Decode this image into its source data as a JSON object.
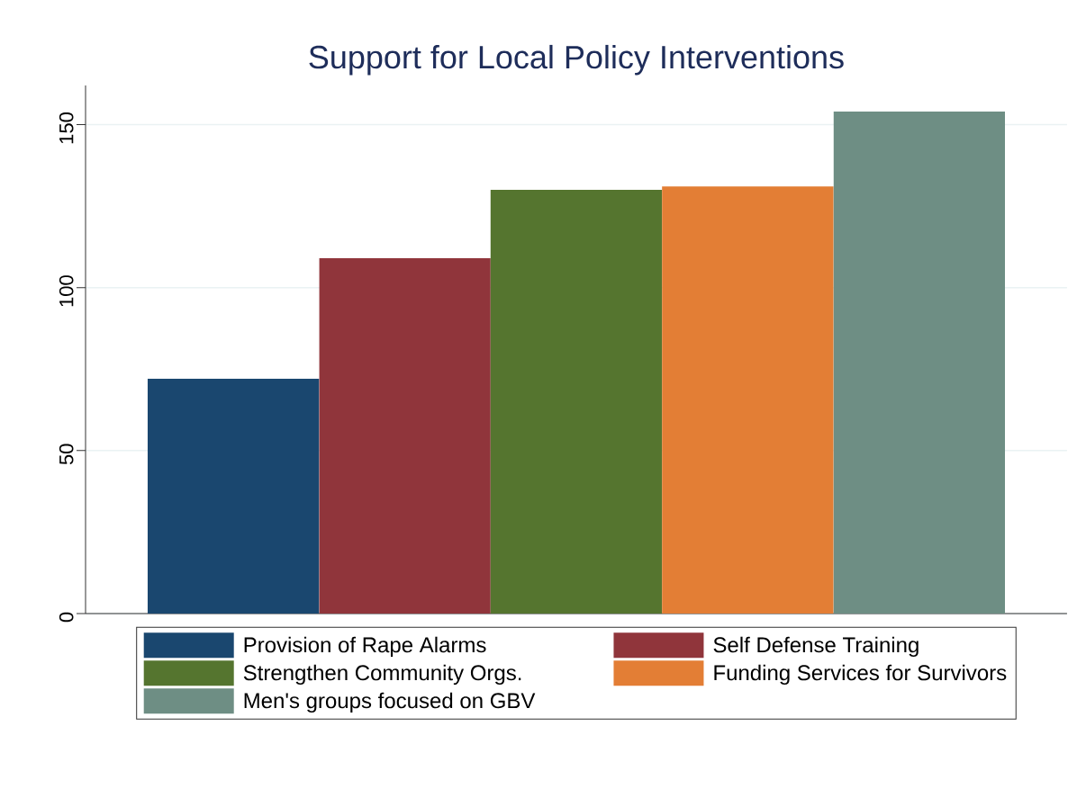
{
  "chart_data": {
    "type": "bar",
    "title": "Support for Local Policy Interventions",
    "categories": [
      null
    ],
    "series": [
      {
        "name": "Provision of Rape Alarms",
        "color": "#1a476f",
        "values": [
          72
        ]
      },
      {
        "name": "Self Defense Training",
        "color": "#90353b",
        "values": [
          109
        ]
      },
      {
        "name": "Strengthen Community Orgs.",
        "color": "#55752f",
        "values": [
          130
        ]
      },
      {
        "name": "Funding Services for Survivors",
        "color": "#e37e35",
        "values": [
          131
        ]
      },
      {
        "name": "Men's groups focused on GBV",
        "color": "#6e8e84",
        "values": [
          154
        ]
      }
    ],
    "ylim": [
      0,
      162
    ],
    "yticks": [
      0,
      50,
      100,
      150
    ],
    "grid": "y",
    "legend": "bottom"
  }
}
